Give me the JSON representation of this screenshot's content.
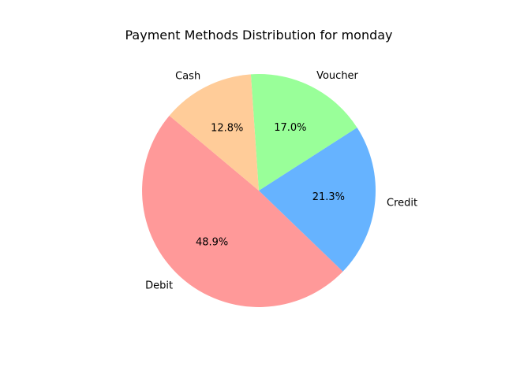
{
  "chart_data": {
    "type": "pie",
    "title": "Payment Methods Distribution for monday",
    "start_angle_deg": 140,
    "direction": "counterclockwise",
    "slices": [
      {
        "label": "Debit",
        "value": 48.9,
        "pct_label": "48.9%",
        "color": "#ff9999"
      },
      {
        "label": "Credit",
        "value": 21.3,
        "pct_label": "21.3%",
        "color": "#66b3ff"
      },
      {
        "label": "Voucher",
        "value": 17.0,
        "pct_label": "17.0%",
        "color": "#99ff99"
      },
      {
        "label": "Cash",
        "value": 12.8,
        "pct_label": "12.8%",
        "color": "#ffcc99"
      }
    ]
  }
}
